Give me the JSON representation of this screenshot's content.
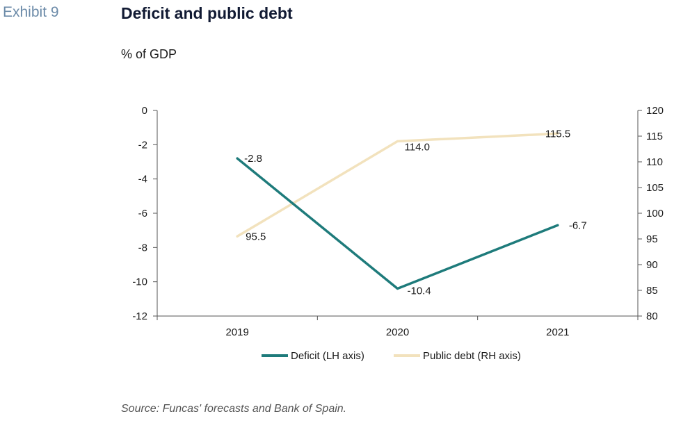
{
  "header": {
    "exhibit": "Exhibit 9",
    "title": "Deficit and public debt",
    "unit": "% of GDP"
  },
  "footer": {
    "source": "Source: Funcas' forecasts and Bank of Spain."
  },
  "chart_data": {
    "type": "line",
    "categories": [
      "2019",
      "2020",
      "2021"
    ],
    "series": [
      {
        "name": "Deficit (LH axis)",
        "axis": "left",
        "color": "#1e7b7b",
        "values": [
          -2.8,
          -10.4,
          -6.7
        ],
        "labels": [
          "-2.8",
          "-10.4",
          "-6.7"
        ]
      },
      {
        "name": "Public debt (RH axis)",
        "axis": "right",
        "color": "#f2e2bd",
        "values": [
          95.5,
          114.0,
          115.5
        ],
        "labels": [
          "95.5",
          "114.0",
          "115.5"
        ]
      }
    ],
    "y_left": {
      "min": -12,
      "max": 0,
      "ticks": [
        0,
        -2,
        -4,
        -6,
        -8,
        -10,
        -12
      ]
    },
    "y_right": {
      "min": 80,
      "max": 120,
      "ticks": [
        120,
        115,
        110,
        105,
        100,
        95,
        90,
        85,
        80
      ]
    },
    "grid": false,
    "legend_position": "bottom"
  }
}
